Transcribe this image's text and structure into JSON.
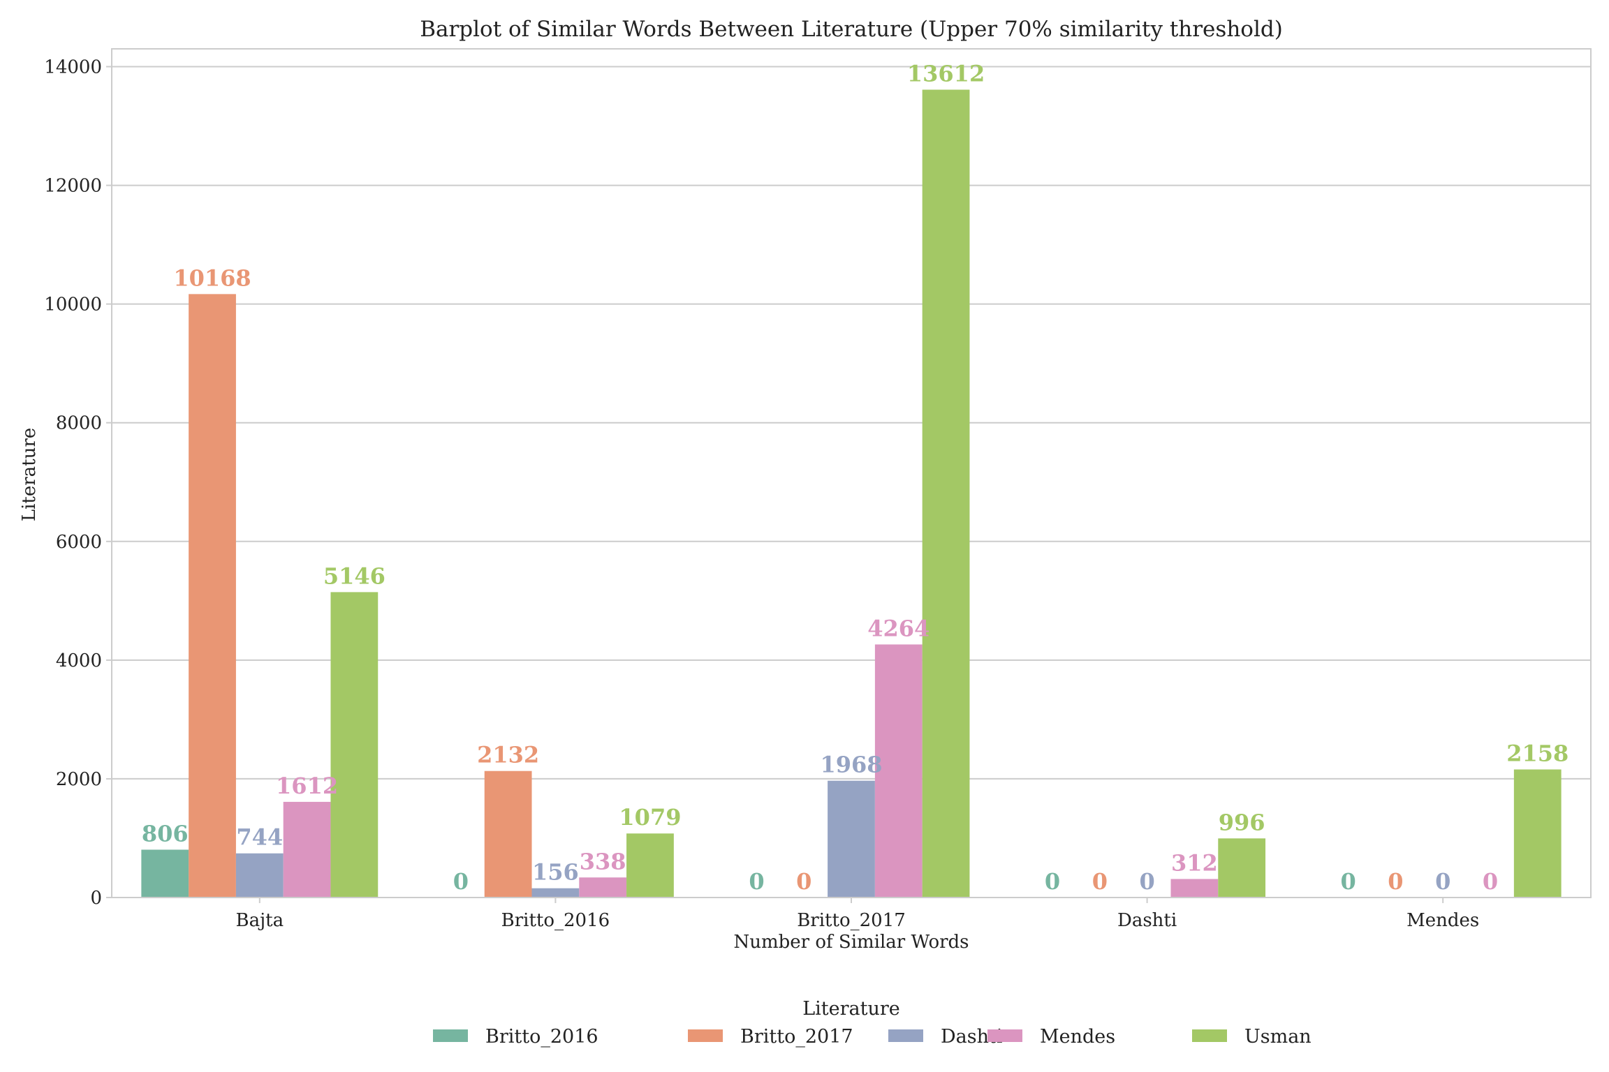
{
  "chart_data": {
    "type": "bar",
    "title": "Barplot of Similar Words Between Literature (Upper 70% similarity threshold)",
    "xlabel": "Number of Similar Words",
    "ylabel": "Literature",
    "categories": [
      "Bajta",
      "Britto_2016",
      "Britto_2017",
      "Dashti",
      "Mendes"
    ],
    "ylim": [
      0,
      14300
    ],
    "yticks": [
      0,
      2000,
      4000,
      6000,
      8000,
      10000,
      12000,
      14000
    ],
    "grid": true,
    "legend": {
      "title": "Literature",
      "placement": "bottom-center"
    },
    "series": [
      {
        "name": "Britto_2016",
        "color": "#76b5a0",
        "values": [
          806,
          0,
          0,
          0,
          0
        ],
        "labels": [
          "806",
          "0",
          "0",
          "0",
          "0"
        ]
      },
      {
        "name": "Britto_2017",
        "color": "#e99674",
        "values": [
          10168,
          2132,
          0,
          0,
          0
        ],
        "labels": [
          "10168",
          "2132",
          "0",
          "0",
          "0"
        ]
      },
      {
        "name": "Dashti",
        "color": "#95a3c3",
        "values": [
          744,
          156,
          1968,
          0,
          0
        ],
        "labels": [
          "744",
          "156",
          "1968",
          "0",
          "0"
        ]
      },
      {
        "name": "Mendes",
        "color": "#db95c0",
        "values": [
          1612,
          338,
          4264,
          312,
          0
        ],
        "labels": [
          "1612",
          "338",
          "4264",
          "312",
          "0"
        ]
      },
      {
        "name": "Usman",
        "color": "#a3c865",
        "values": [
          5146,
          1079,
          13612,
          996,
          2158
        ],
        "labels": [
          "5146",
          "1079",
          "13612",
          "996",
          "2158"
        ]
      }
    ]
  }
}
